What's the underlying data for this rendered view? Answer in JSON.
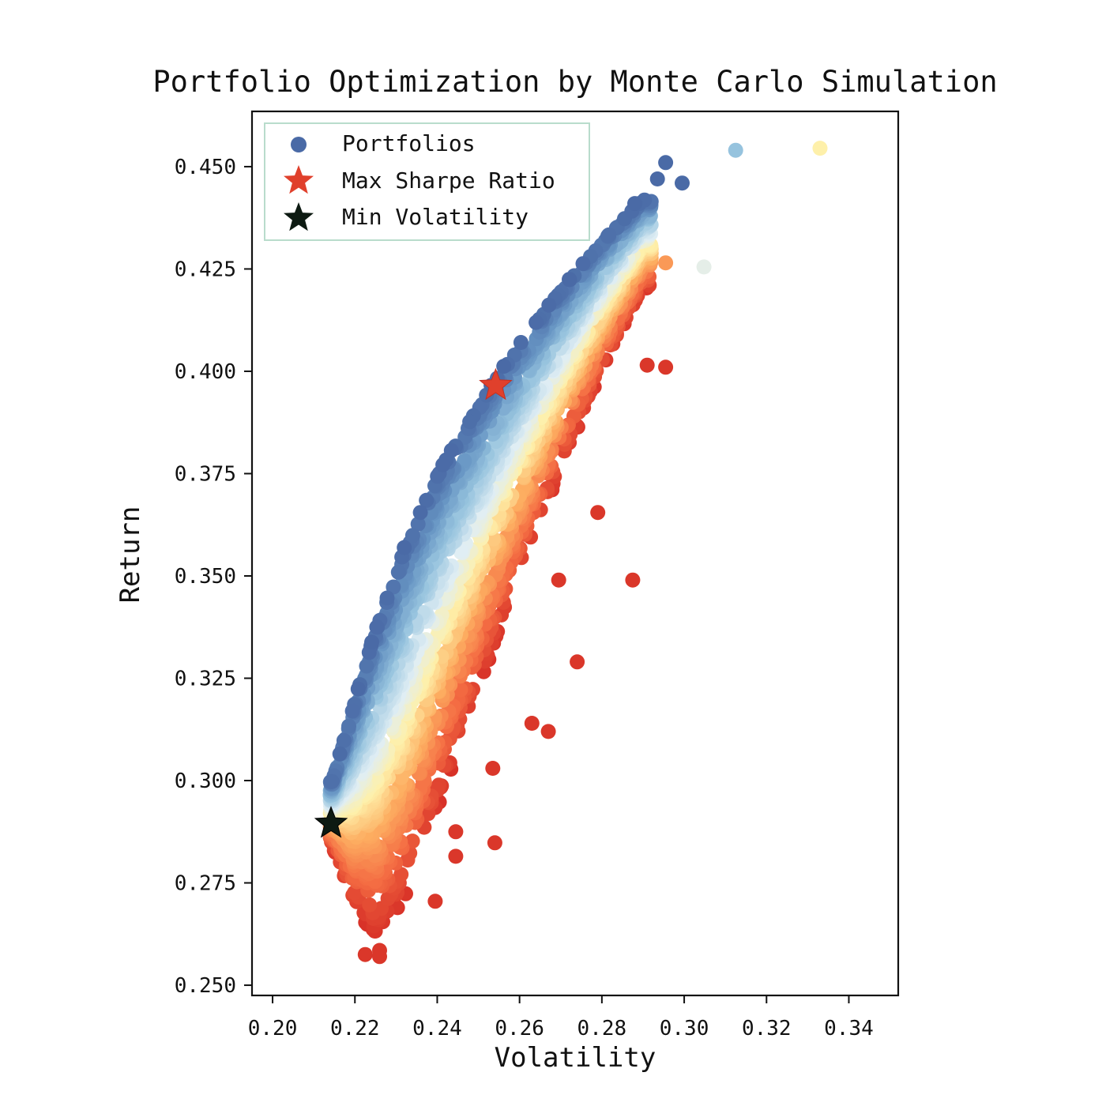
{
  "chart_data": {
    "type": "scatter",
    "title": "Portfolio Optimization by Monte Carlo Simulation",
    "xlabel": "Volatility",
    "ylabel": "Return",
    "xlim": [
      0.195,
      0.352
    ],
    "ylim": [
      0.2475,
      0.4635
    ],
    "xticks": [
      "0.20",
      "0.22",
      "0.24",
      "0.26",
      "0.28",
      "0.30",
      "0.32",
      "0.34"
    ],
    "yticks": [
      "0.250",
      "0.275",
      "0.300",
      "0.325",
      "0.350",
      "0.375",
      "0.400",
      "0.425",
      "0.450"
    ],
    "grid": false,
    "legend": {
      "placement": "upper left",
      "entries": [
        "Portfolios",
        "Max Sharpe Ratio",
        "Min Volatility"
      ]
    },
    "colormap": "RdYlBu (colored by Sharpe ratio)",
    "colors": {
      "portfolios_legend": "#4a6aa6",
      "max_sharpe": "#e0402c",
      "min_volatility": "#0d1a12",
      "low_sharpe": "#d73027",
      "mid_sharpe": "#fdf3aa",
      "high_sharpe": "#4a6aa6"
    },
    "frontier": {
      "vol_min": 0.214,
      "vol_knots": [
        0.2145,
        0.2195,
        0.225,
        0.232,
        0.24,
        0.25,
        0.26,
        0.27,
        0.28,
        0.29
      ],
      "upper_return_knots": [
        0.3,
        0.318,
        0.337,
        0.357,
        0.375,
        0.392,
        0.407,
        0.42,
        0.432,
        0.442
      ],
      "lower_return_knots": [
        0.284,
        0.269,
        0.262,
        0.27,
        0.293,
        0.322,
        0.35,
        0.376,
        0.4,
        0.42
      ],
      "count": 2800
    },
    "series": [
      {
        "name": "Portfolios",
        "note": "outlier points",
        "points": [
          [
            0.2955,
            0.451
          ],
          [
            0.2935,
            0.447
          ],
          [
            0.2995,
            0.446
          ],
          [
            0.288,
            0.441
          ],
          [
            0.3125,
            0.454
          ],
          [
            0.333,
            0.4545
          ],
          [
            0.3048,
            0.4255
          ],
          [
            0.2955,
            0.4265
          ],
          [
            0.2955,
            0.401
          ],
          [
            0.291,
            0.4015
          ],
          [
            0.274,
            0.329
          ],
          [
            0.267,
            0.312
          ],
          [
            0.263,
            0.314
          ],
          [
            0.254,
            0.2848
          ],
          [
            0.2535,
            0.303
          ],
          [
            0.2445,
            0.2875
          ],
          [
            0.2445,
            0.2815
          ],
          [
            0.2395,
            0.2705
          ],
          [
            0.2225,
            0.2575
          ],
          [
            0.226,
            0.2585
          ],
          [
            0.226,
            0.257
          ],
          [
            0.279,
            0.3655
          ],
          [
            0.2875,
            0.349
          ],
          [
            0.2695,
            0.349
          ]
        ]
      },
      {
        "name": "Max Sharpe Ratio",
        "points": [
          [
            0.2542,
            0.3965
          ]
        ]
      },
      {
        "name": "Min Volatility",
        "points": [
          [
            0.2142,
            0.2895
          ]
        ]
      }
    ]
  }
}
